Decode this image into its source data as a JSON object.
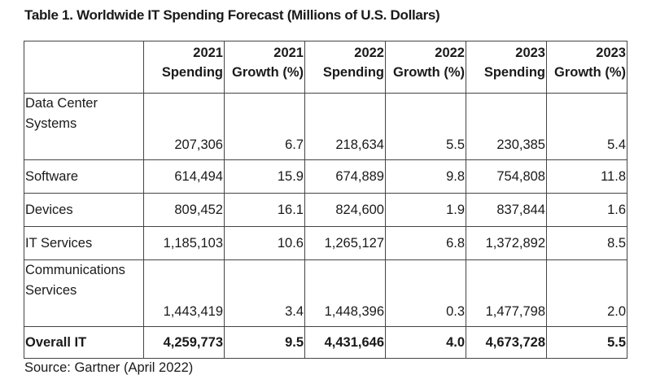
{
  "title": "Table 1. Worldwide IT Spending Forecast (Millions of U.S. Dollars)",
  "columns": [
    {
      "year": "2021",
      "label": "Spending"
    },
    {
      "year": "2021",
      "label": "Growth (%)"
    },
    {
      "year": "2022",
      "label": "Spending"
    },
    {
      "year": "2022",
      "label": "Growth (%)"
    },
    {
      "year": "2023",
      "label": "Spending"
    },
    {
      "year": "2023",
      "label": "Growth (%)"
    }
  ],
  "rows": [
    {
      "name": [
        "Data Center",
        "Systems"
      ],
      "values": [
        "207,306",
        "6.7",
        "218,634",
        "5.5",
        "230,385",
        "5.4"
      ]
    },
    {
      "name": [
        "Software"
      ],
      "values": [
        "614,494",
        "15.9",
        "674,889",
        "9.8",
        "754,808",
        "11.8"
      ]
    },
    {
      "name": [
        "Devices"
      ],
      "values": [
        "809,452",
        "16.1",
        "824,600",
        "1.9",
        "837,844",
        "1.6"
      ]
    },
    {
      "name": [
        "IT Services"
      ],
      "values": [
        "1,185,103",
        "10.6",
        "1,265,127",
        "6.8",
        "1,372,892",
        "8.5"
      ]
    },
    {
      "name": [
        "Communications",
        "Services"
      ],
      "values": [
        "1,443,419",
        "3.4",
        "1,448,396",
        "0.3",
        "1,477,798",
        "2.0"
      ]
    }
  ],
  "total": {
    "name": "Overall IT",
    "values": [
      "4,259,773",
      "9.5",
      "4,431,646",
      "4.0",
      "4,673,728",
      "5.5"
    ]
  },
  "source": "Source: Gartner (April 2022)"
}
